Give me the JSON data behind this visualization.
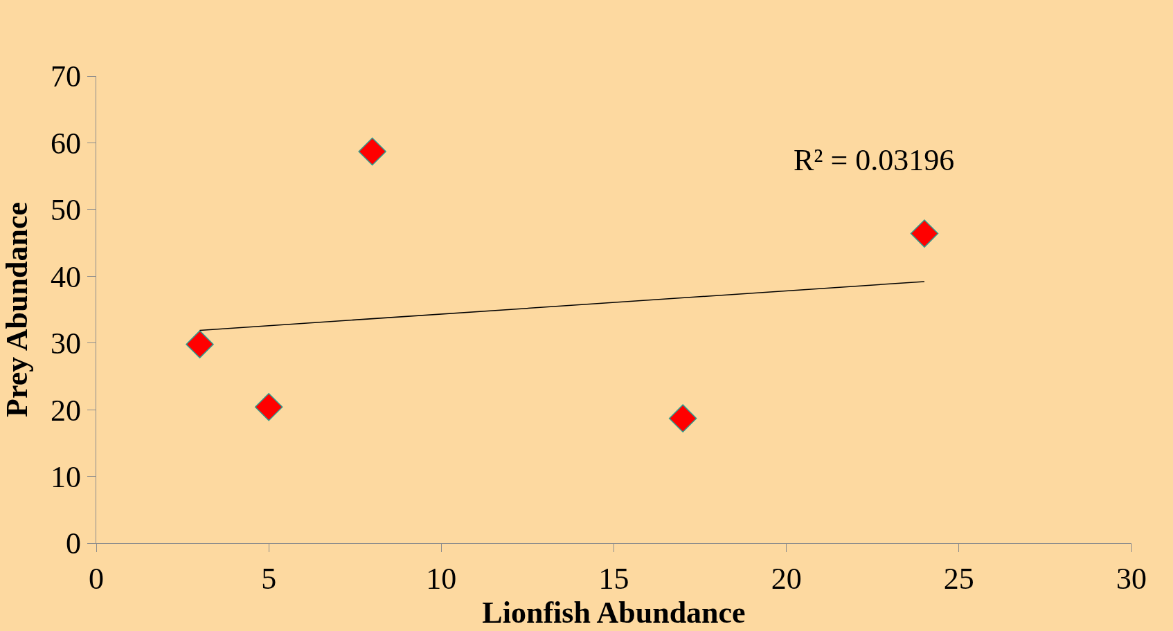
{
  "chart_data": {
    "type": "scatter",
    "xlabel": "Lionfish Abundance",
    "ylabel": "Prey Abundance",
    "xlim": [
      0,
      30
    ],
    "xticks": [
      0,
      5,
      10,
      15,
      20,
      25,
      30
    ],
    "ylim": [
      0,
      70
    ],
    "yticks": [
      0,
      10,
      20,
      30,
      40,
      50,
      60,
      70
    ],
    "grid": false,
    "series": [
      {
        "marker": "diamond",
        "color": "#ff0000",
        "x": [
          3,
          5,
          8,
          17,
          24
        ],
        "values": [
          29.8,
          20.4,
          58.7,
          18.7,
          46.4
        ]
      },
      {
        "type": "line",
        "color": "#000000",
        "x": [
          3,
          24
        ],
        "values": [
          31.9,
          39.2
        ],
        "line_style": "solid",
        "marker": "none"
      }
    ],
    "annotations": [
      "R² = 0.03196"
    ]
  }
}
